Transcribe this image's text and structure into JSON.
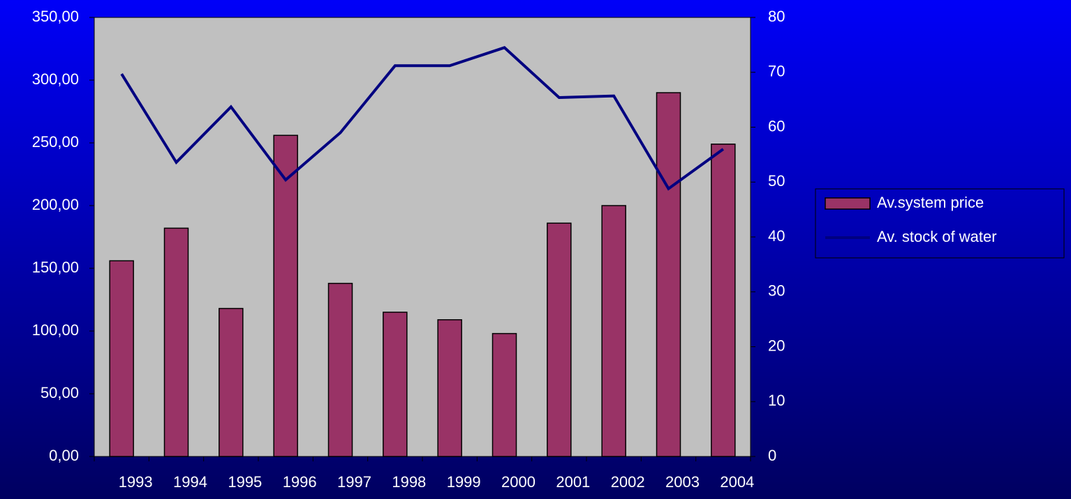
{
  "chart_data": {
    "type": "bar_line",
    "categories": [
      "1993",
      "1994",
      "1995",
      "1996",
      "1997",
      "1998",
      "1999",
      "2000",
      "2001",
      "2002",
      "2003",
      "2004"
    ],
    "series": [
      {
        "name": "Av.system price",
        "type": "bar",
        "color": "#993366",
        "axis": "y",
        "values": [
          156,
          182,
          118,
          256,
          138,
          115,
          109,
          98,
          186,
          200,
          290,
          249
        ]
      },
      {
        "name": "Av. stock of water",
        "type": "line",
        "color": "#000080",
        "axis": "y2",
        "values": [
          69.7,
          53.6,
          63.7,
          50.4,
          59,
          71.2,
          71.2,
          74.5,
          65.4,
          65.7,
          48.8,
          56
        ]
      }
    ],
    "ylim": [
      0,
      350
    ],
    "yticks": [
      {
        "value": 0,
        "label": "0,00"
      },
      {
        "value": 50,
        "label": "50,00"
      },
      {
        "value": 100,
        "label": "100,00"
      },
      {
        "value": 150,
        "label": "150,00"
      },
      {
        "value": 200,
        "label": "200,00"
      },
      {
        "value": 250,
        "label": "250,00"
      },
      {
        "value": 300,
        "label": "300,00"
      },
      {
        "value": 350,
        "label": "350,00"
      }
    ],
    "y2lim": [
      0,
      80
    ],
    "y2ticks": [
      0,
      10,
      20,
      30,
      40,
      50,
      60,
      70,
      80
    ],
    "legend": "right",
    "plot_background": "#c0c0c0"
  }
}
